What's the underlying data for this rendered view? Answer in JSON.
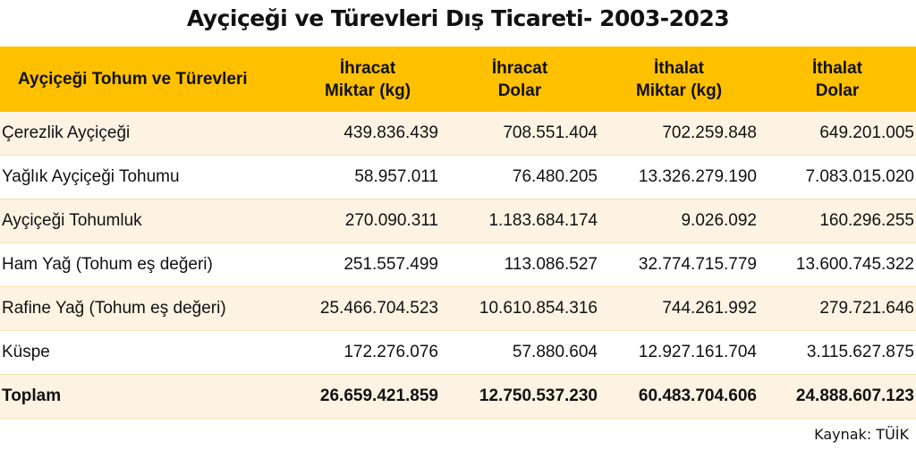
{
  "title": "Ayçiçeği ve Türevleri Dış Ticareti- 2003-2023",
  "headers": [
    "Ayçiçeği Tohum ve Türevleri",
    [
      "İhracat",
      "Miktar (kg)"
    ],
    [
      "İhracat",
      "Dolar"
    ],
    [
      "İthalat",
      "Miktar (kg)"
    ],
    [
      "İthalat",
      "Dolar"
    ]
  ],
  "rows": [
    [
      "Çerezlik Ayçiçeği",
      "439.836.439",
      "708.551.404",
      "702.259.848",
      "649.201.005"
    ],
    [
      "Yağlık Ayçiçeği Tohumu",
      "58.957.011",
      "76.480.205",
      "13.326.279.190",
      "7.083.015.020"
    ],
    [
      "Ayçiçeği Tohumluk",
      "270.090.311",
      "1.183.684.174",
      "9.026.092",
      "160.296.255"
    ],
    [
      "Ham Yağ (Tohum eş değeri)",
      "251.557.499",
      "113.086.527",
      "32.774.715.779",
      "13.600.745.322"
    ],
    [
      "Rafine Yağ (Tohum eş değeri)",
      "25.466.704.523",
      "10.610.854.316",
      "744.261.992",
      "279.721.646"
    ],
    [
      "Küspe",
      "172.276.076",
      "57.880.604",
      "12.927.161.704",
      "3.115.627.875"
    ],
    [
      "Toplam",
      "26.659.421.859",
      "12.750.537.230",
      "60.483.704.606",
      "24.888.607.123"
    ]
  ],
  "source": "Kaynak: TÜİK",
  "colors": {
    "header": "#FFC000",
    "stripe": "#FDF3E3"
  }
}
